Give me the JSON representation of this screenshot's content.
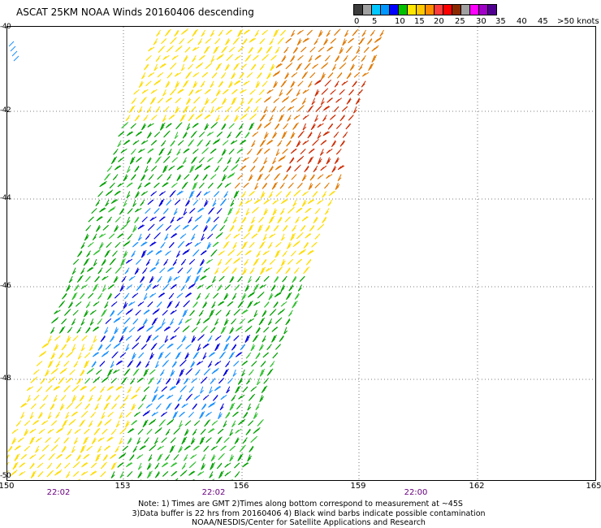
{
  "header": {
    "title": "ASCAT 25KM NOAA Winds 20160406 descending"
  },
  "scale": {
    "colors": [
      "#3c3c3c",
      "#a0a0a0",
      "#00c8ff",
      "#0096ff",
      "#0000ff",
      "#00c000",
      "#ffe600",
      "#ffc800",
      "#ff8c00",
      "#ff3c3c",
      "#ff0000",
      "#8c2800",
      "#a0a0a0",
      "#ff00ff",
      "#a000c8",
      "#500090"
    ],
    "labels": [
      "0",
      "5",
      "10",
      "15",
      "20",
      "25",
      "30",
      "35",
      "40",
      "45",
      ">50 knots"
    ]
  },
  "axes": {
    "lat_labels": [
      "-40",
      "-42",
      "-44",
      "-46",
      "-48",
      "-50"
    ],
    "lon_labels": [
      "150",
      "153",
      "156",
      "159",
      "162",
      "165"
    ],
    "times": [
      "22:02",
      "22:02",
      "22:00"
    ]
  },
  "notes": {
    "line1": "Note: 1) Times are GMT 2)Times along bottom correspond to measurement at ~45S",
    "line2": "3)Data buffer is 22 hrs from 20160406 4) Black wind barbs indicate possible contamination",
    "line3": "NOAA/NESDIS/Center for Satellite Applications and Research"
  },
  "map": {
    "wind_colors": {
      "yellow": "#ffdc00",
      "orange": "#e07800",
      "red": "#cc2a00",
      "green": "#00a000",
      "lightgreen": "#30c030",
      "blue": "#0000dd",
      "lightblue": "#1890ff"
    }
  }
}
